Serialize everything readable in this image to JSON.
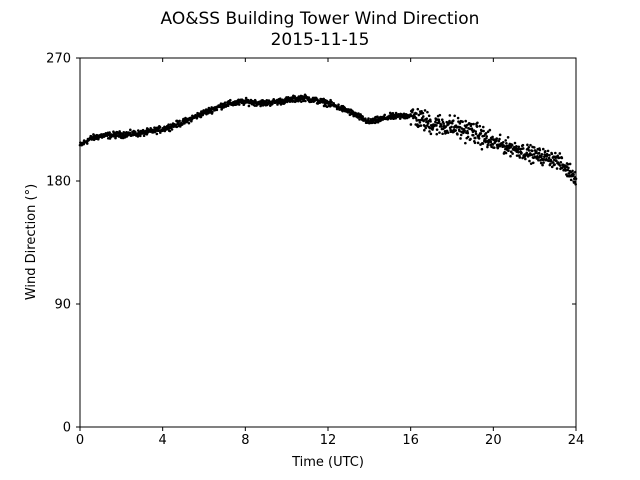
{
  "chart_data": {
    "type": "scatter",
    "title": "AO&SS Building Tower Wind Direction",
    "subtitle": "2015-11-15",
    "xlabel": "Time (UTC)",
    "ylabel": "Wind Direction (°)",
    "xlim": [
      0,
      24
    ],
    "ylim": [
      0,
      270
    ],
    "xticks": [
      "0",
      "4",
      "8",
      "12",
      "16",
      "20",
      "24"
    ],
    "yticks": [
      "0",
      "90",
      "180",
      "270"
    ],
    "grid": false,
    "marker_color": "#000000",
    "trend": [
      {
        "x": 0.0,
        "y": 206
      },
      {
        "x": 0.5,
        "y": 211
      },
      {
        "x": 1.0,
        "y": 213
      },
      {
        "x": 2.0,
        "y": 214
      },
      {
        "x": 3.0,
        "y": 215
      },
      {
        "x": 4.0,
        "y": 218
      },
      {
        "x": 5.0,
        "y": 223
      },
      {
        "x": 6.0,
        "y": 230
      },
      {
        "x": 7.0,
        "y": 236
      },
      {
        "x": 8.0,
        "y": 238
      },
      {
        "x": 9.0,
        "y": 237
      },
      {
        "x": 10.0,
        "y": 239
      },
      {
        "x": 10.8,
        "y": 241
      },
      {
        "x": 12.0,
        "y": 237
      },
      {
        "x": 13.0,
        "y": 231
      },
      {
        "x": 14.0,
        "y": 223
      },
      {
        "x": 15.0,
        "y": 227
      },
      {
        "x": 16.0,
        "y": 228
      },
      {
        "x": 17.0,
        "y": 222
      },
      {
        "x": 18.0,
        "y": 220
      },
      {
        "x": 19.0,
        "y": 216
      },
      {
        "x": 20.0,
        "y": 208
      },
      {
        "x": 21.0,
        "y": 204
      },
      {
        "x": 22.0,
        "y": 199
      },
      {
        "x": 23.0,
        "y": 196
      },
      {
        "x": 24.0,
        "y": 183
      }
    ]
  }
}
